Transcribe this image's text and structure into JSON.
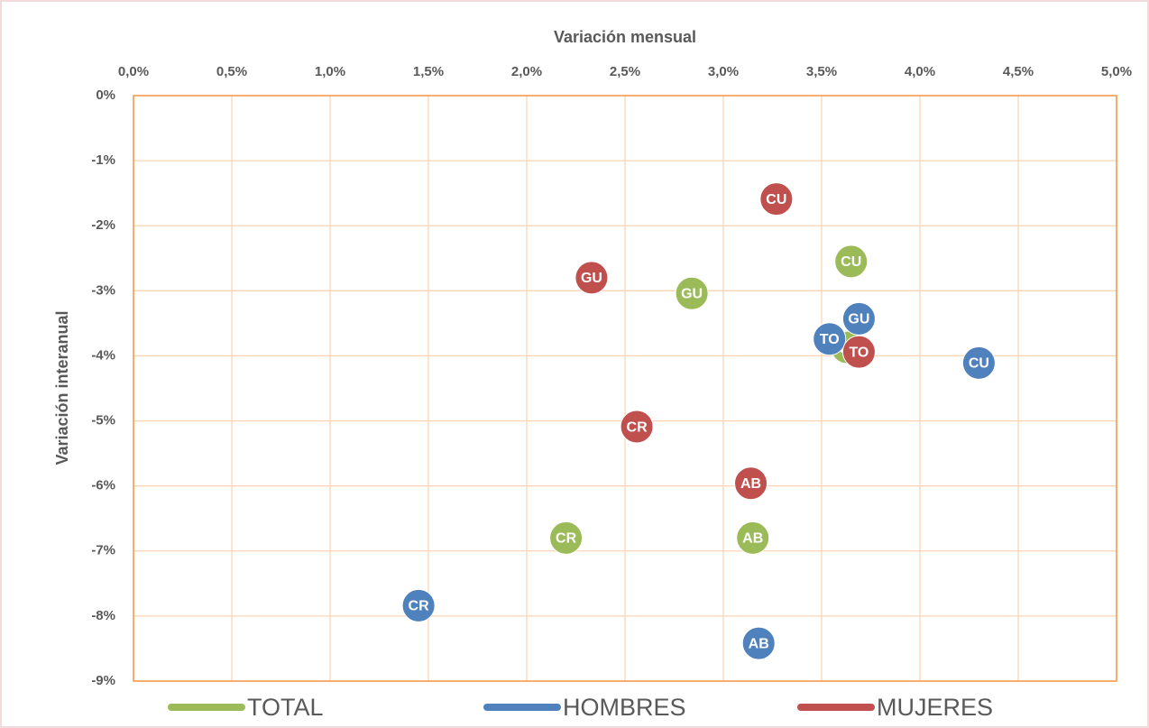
{
  "chart_data": {
    "type": "scatter",
    "xlabel": "Variación mensual",
    "ylabel": "Variación interanual",
    "xlim": [
      0,
      5
    ],
    "ylim": [
      -9,
      0
    ],
    "xticks": [
      {
        "value": 0,
        "label": "0,0%"
      },
      {
        "value": 0.5,
        "label": "0,5%"
      },
      {
        "value": 1,
        "label": "1,0%"
      },
      {
        "value": 1.5,
        "label": "1,5%"
      },
      {
        "value": 2,
        "label": "2,0%"
      },
      {
        "value": 2.5,
        "label": "2,5%"
      },
      {
        "value": 3,
        "label": "3,0%"
      },
      {
        "value": 3.5,
        "label": "3,5%"
      },
      {
        "value": 4,
        "label": "4,0%"
      },
      {
        "value": 4.5,
        "label": "4,5%"
      },
      {
        "value": 5,
        "label": "5,0%"
      }
    ],
    "yticks": [
      {
        "value": 0,
        "label": "0%"
      },
      {
        "value": -1,
        "label": "-1%"
      },
      {
        "value": -2,
        "label": "-2%"
      },
      {
        "value": -3,
        "label": "-3%"
      },
      {
        "value": -4,
        "label": "-4%"
      },
      {
        "value": -5,
        "label": "-5%"
      },
      {
        "value": -6,
        "label": "-6%"
      },
      {
        "value": -7,
        "label": "-7%"
      },
      {
        "value": -8,
        "label": "-8%"
      },
      {
        "value": -9,
        "label": "-9%"
      }
    ],
    "grid": true,
    "series": [
      {
        "name": "TOTAL",
        "color": "#9bbb59",
        "labels": [
          "CU",
          "GU",
          "TO",
          "CR",
          "AB"
        ],
        "x": [
          3.65,
          2.84,
          3.63,
          2.2,
          3.15
        ],
        "values": [
          -2.55,
          -3.04,
          -3.87,
          -6.8,
          -6.8
        ]
      },
      {
        "name": "HOMBRES",
        "color": "#4f81bd",
        "labels": [
          "CR",
          "AB",
          "TO",
          "GU",
          "CU"
        ],
        "x": [
          1.45,
          3.18,
          3.54,
          3.69,
          4.3
        ],
        "values": [
          -7.84,
          -8.42,
          -3.74,
          -3.43,
          -4.11
        ]
      },
      {
        "name": "MUJERES",
        "color": "#c0504d",
        "labels": [
          "CU",
          "GU",
          "CR",
          "AB",
          "TO"
        ],
        "x": [
          3.27,
          2.33,
          2.56,
          3.14,
          3.69
        ],
        "values": [
          -1.59,
          -2.8,
          -5.09,
          -5.96,
          -3.94
        ]
      }
    ]
  }
}
